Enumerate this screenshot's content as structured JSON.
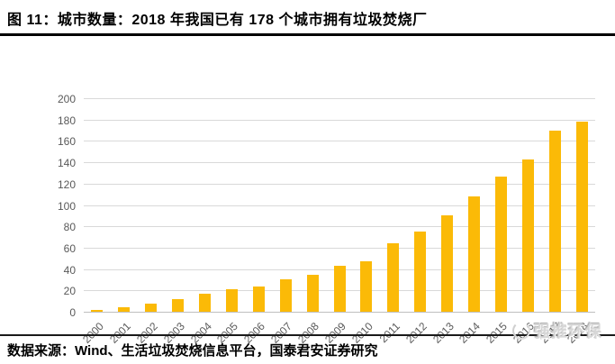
{
  "header": {
    "title": "图 11：城市数量：2018 年我国已有 178 个城市拥有垃圾焚烧厂"
  },
  "footer": {
    "source": "数据来源：Wind、生活垃圾焚烧信息平台，国泰君安证券研究",
    "watermark": "强推环保"
  },
  "chart_data": {
    "type": "bar",
    "title": "城市数量",
    "categories": [
      "2000",
      "2001",
      "2002",
      "2003",
      "2004",
      "2005",
      "2006",
      "2007",
      "2008",
      "2009",
      "2010",
      "2011",
      "2012",
      "2013",
      "2014",
      "2015",
      "2016",
      "2017",
      "2018"
    ],
    "values": [
      2,
      4,
      8,
      12,
      17,
      21,
      24,
      30,
      35,
      43,
      47,
      64,
      75,
      90,
      108,
      127,
      143,
      170,
      178
    ],
    "xlabel": "",
    "ylabel": "",
    "ylim": [
      0,
      200
    ],
    "ytick_step": 20,
    "grid": true,
    "legend_position": "none",
    "bar_color": "#FBBA07",
    "gridline_color": "#D9D9D9",
    "axis_line_color": "#BFBFBF",
    "tick_label_color": "#595959"
  }
}
